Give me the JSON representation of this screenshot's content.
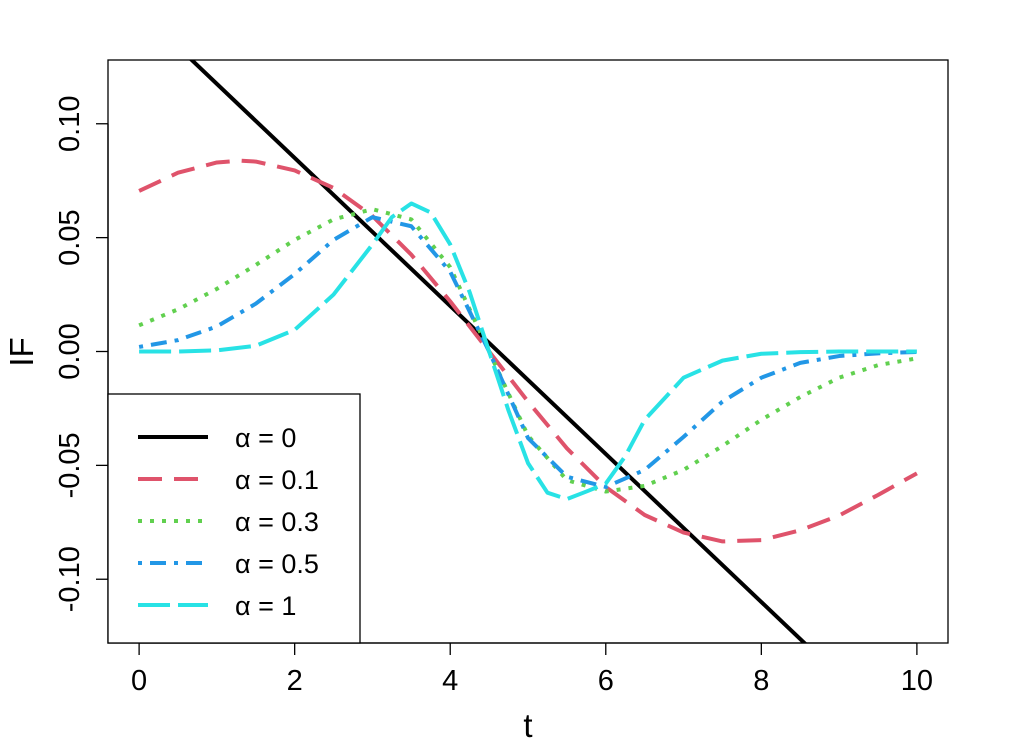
{
  "chart_data": {
    "type": "line",
    "title": "",
    "xlabel": "t",
    "ylabel": "IF",
    "xlim": [
      -0.4,
      10.4
    ],
    "ylim": [
      -0.128,
      0.128
    ],
    "x_ticks": [
      0,
      2,
      4,
      6,
      8,
      10
    ],
    "x_tick_labels": [
      "0",
      "2",
      "4",
      "6",
      "8",
      "10"
    ],
    "y_ticks": [
      -0.1,
      -0.05,
      0.0,
      0.05,
      0.1
    ],
    "y_tick_labels": [
      "-0.10",
      "-0.05",
      "0.00",
      "0.05",
      "0.10"
    ],
    "grid": false,
    "legend_position": "bottom-left",
    "series": [
      {
        "name": "α = 0",
        "color": "#000000",
        "dash": "solid",
        "x": [
          0,
          10
        ],
        "y": [
          0.15,
          -0.175
        ]
      },
      {
        "name": "α = 0.1",
        "color": "#DF536B",
        "dash": "dashed",
        "x": [
          0,
          0.5,
          1,
          1.3,
          1.5,
          2,
          2.5,
          3,
          3.5,
          4,
          4.5,
          5,
          5.5,
          6,
          6.5,
          7,
          7.5,
          8,
          8.5,
          9,
          9.5,
          10
        ],
        "y": [
          0.0705,
          0.0785,
          0.083,
          0.0838,
          0.0834,
          0.0795,
          0.0718,
          0.0595,
          0.0425,
          0.022,
          0,
          -0.022,
          -0.0425,
          -0.0595,
          -0.0718,
          -0.0795,
          -0.0834,
          -0.0828,
          -0.0785,
          -0.072,
          -0.063,
          -0.0535
        ]
      },
      {
        "name": "α = 0.3",
        "color": "#61D04F",
        "dash": "dotted",
        "x": [
          0,
          0.5,
          1,
          1.5,
          2,
          2.5,
          3,
          3.5,
          4,
          4.5,
          5,
          5.5,
          6,
          6.5,
          7,
          7.5,
          8,
          8.5,
          9,
          9.5,
          10
        ],
        "y": [
          0.0115,
          0.0185,
          0.0275,
          0.038,
          0.049,
          0.058,
          0.0625,
          0.058,
          0.037,
          0,
          -0.037,
          -0.0565,
          -0.0615,
          -0.059,
          -0.052,
          -0.0415,
          -0.03,
          -0.02,
          -0.0115,
          -0.006,
          -0.003
        ]
      },
      {
        "name": "α = 0.5",
        "color": "#2297E6",
        "dash": "dotdash",
        "x": [
          0,
          0.5,
          1,
          1.5,
          2,
          2.5,
          3,
          3.5,
          4,
          4.5,
          5,
          5.5,
          6,
          6.5,
          7,
          7.5,
          8,
          8.5,
          9,
          9.5,
          10
        ],
        "y": [
          0.002,
          0.005,
          0.011,
          0.021,
          0.034,
          0.049,
          0.059,
          0.055,
          0.035,
          0,
          -0.038,
          -0.055,
          -0.0595,
          -0.052,
          -0.0375,
          -0.022,
          -0.0115,
          -0.005,
          -0.002,
          -0.0008,
          -0.0002
        ]
      },
      {
        "name": "α = 1",
        "color": "#28E2E5",
        "dash": "longdash",
        "x": [
          0,
          0.5,
          1,
          1.5,
          2,
          2.5,
          3,
          3.25,
          3.5,
          3.75,
          4,
          4.25,
          4.5,
          4.75,
          5,
          5.25,
          5.5,
          5.75,
          6,
          6.25,
          6.5,
          7,
          7.5,
          8,
          8.5,
          9,
          9.5,
          10
        ],
        "y": [
          0,
          0,
          0.0005,
          0.0025,
          0.0095,
          0.025,
          0.047,
          0.059,
          0.065,
          0.061,
          0.047,
          0.026,
          0,
          -0.026,
          -0.049,
          -0.062,
          -0.0648,
          -0.0615,
          -0.058,
          -0.046,
          -0.03,
          -0.0115,
          -0.004,
          -0.001,
          -0.0003,
          0,
          0,
          0
        ]
      }
    ]
  }
}
